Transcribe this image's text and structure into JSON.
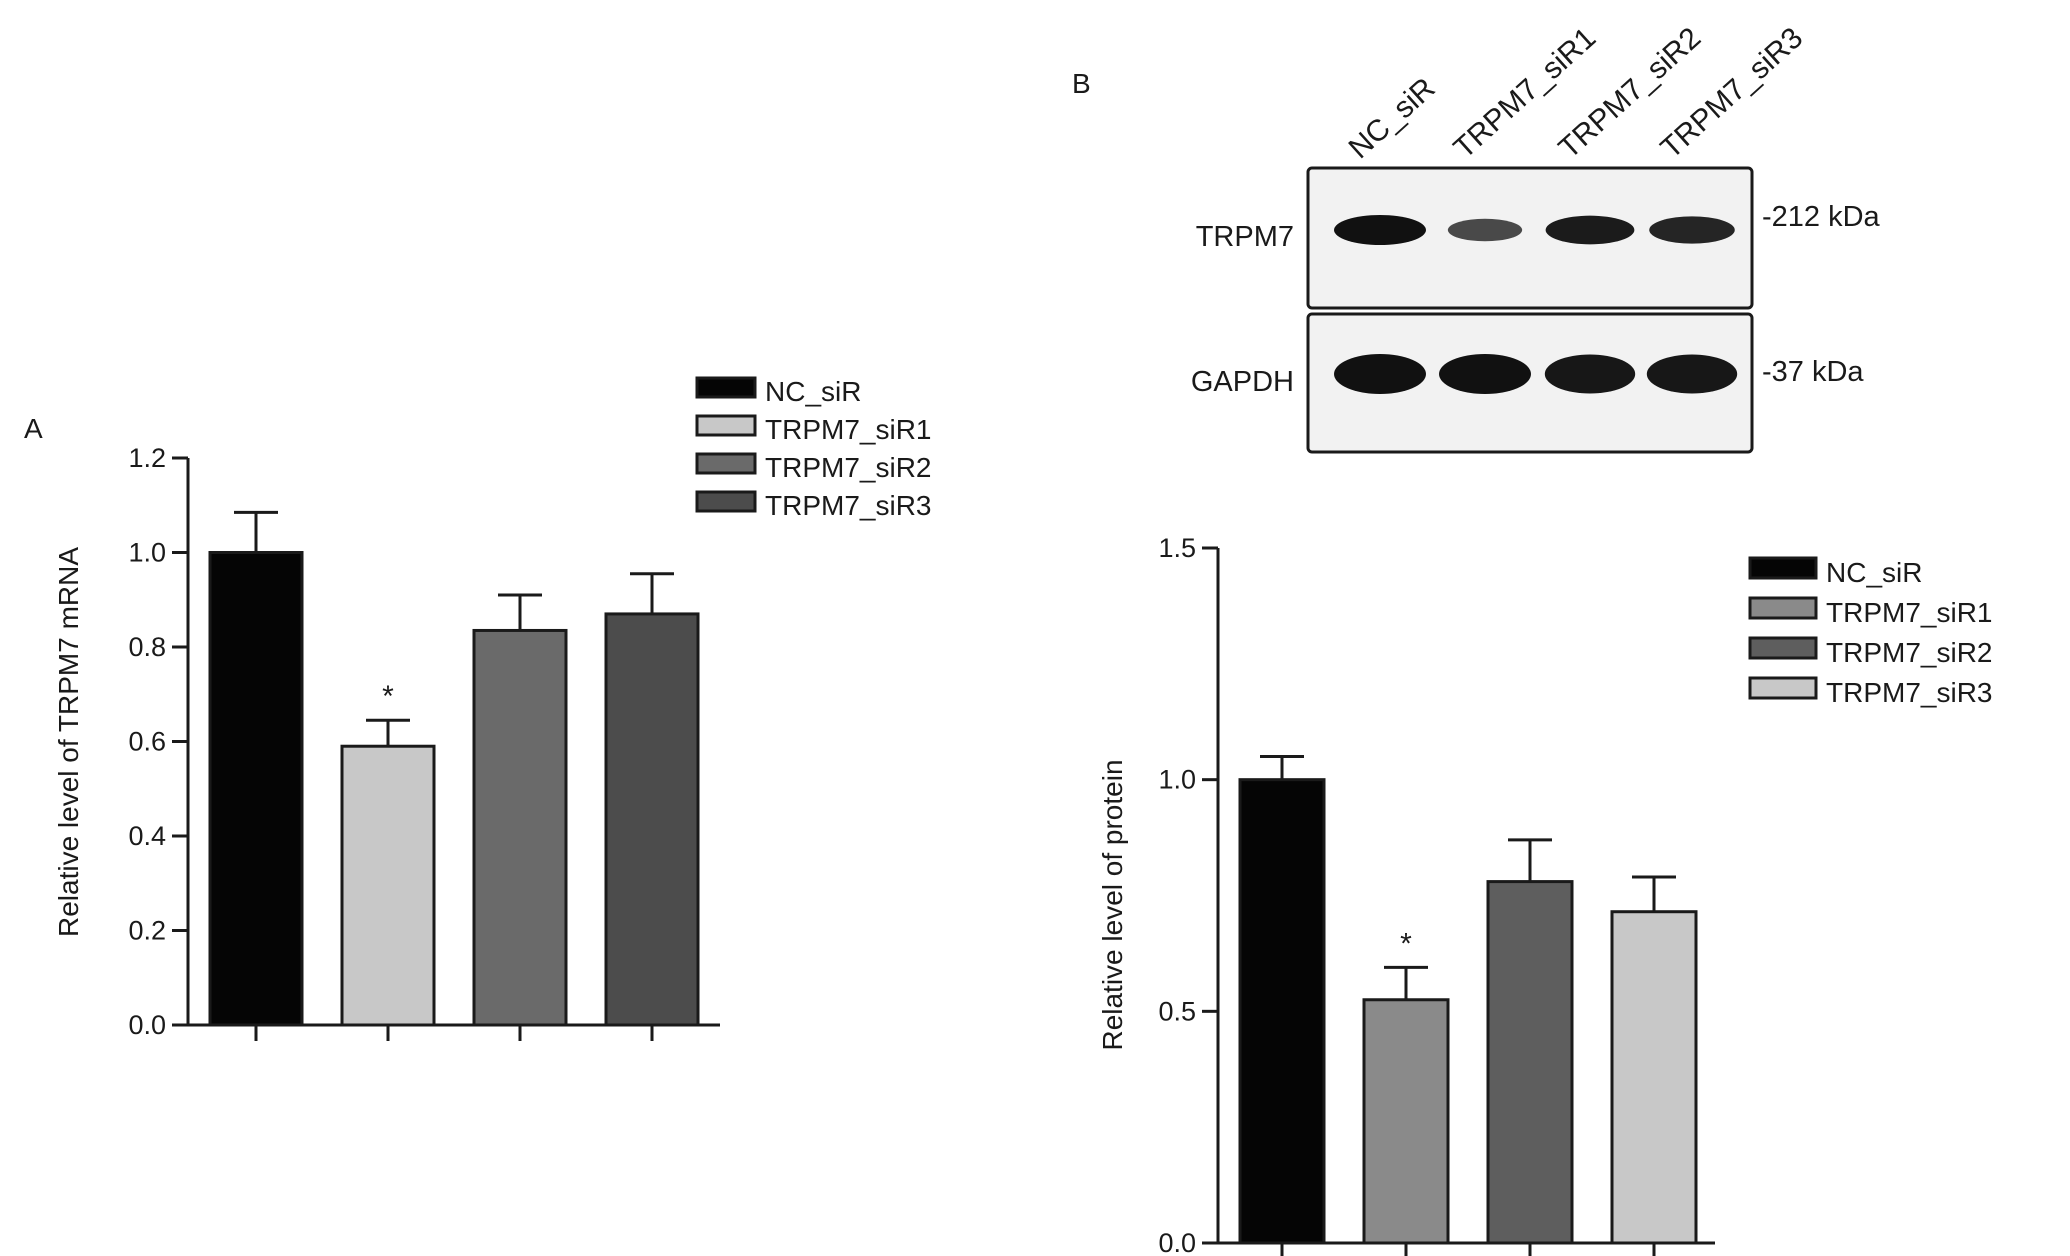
{
  "panels": {
    "a_label": "A",
    "b_label": "B"
  },
  "colors": {
    "axis": "#1a1a1a",
    "blot_bg": "#f2f2f2",
    "band": "#111111"
  },
  "chart_data": [
    {
      "type": "bar",
      "panel": "A",
      "categories": [
        "NC_siR",
        "TRPM7_siR1",
        "TRPM7_siR2",
        "TRPM7_siR3"
      ],
      "values": [
        1.0,
        0.59,
        0.835,
        0.87
      ],
      "errors": [
        0.085,
        0.055,
        0.075,
        0.085
      ],
      "significance": [
        "",
        "*",
        "",
        ""
      ],
      "colors": [
        "#050505",
        "#c8c8c8",
        "#6a6a6a",
        "#4c4c4c"
      ],
      "ylabel": "Relative level of TRPM7 mRNA",
      "xlabel": "",
      "ylim": [
        0,
        1.2
      ],
      "yticks": [
        0.0,
        0.2,
        0.4,
        0.6,
        0.8,
        1.0,
        1.2
      ],
      "ytick_labels": [
        "0.0",
        "0.2",
        "0.4",
        "0.6",
        "0.8",
        "1.0",
        "1.2"
      ],
      "legend": [
        "NC_siR",
        "TRPM7_siR1",
        "TRPM7_siR2",
        "TRPM7_siR3"
      ],
      "legend_position": "top-right",
      "grid": false
    },
    {
      "type": "bar",
      "panel": "B",
      "categories": [
        "NC_siR",
        "TRPM7_siR1",
        "TRPM7_siR2",
        "TRPM7_siR3"
      ],
      "values": [
        1.0,
        0.525,
        0.78,
        0.715
      ],
      "errors": [
        0.05,
        0.07,
        0.09,
        0.075
      ],
      "significance": [
        "",
        "*",
        "",
        ""
      ],
      "colors": [
        "#050505",
        "#8a8a8a",
        "#5e5e5e",
        "#c8c8c8"
      ],
      "ylabel": "Relative level of protein",
      "xlabel": "",
      "ylim": [
        0,
        1.5
      ],
      "yticks": [
        0.0,
        0.5,
        1.0,
        1.5
      ],
      "ytick_labels": [
        "0.0",
        "0.5",
        "1.0",
        "1.5"
      ],
      "legend": [
        "NC_siR",
        "TRPM7_siR1",
        "TRPM7_siR2",
        "TRPM7_siR3"
      ],
      "legend_position": "top-right",
      "grid": false
    }
  ],
  "blot": {
    "lanes": [
      "NC_siR",
      "TRPM7_siR1",
      "TRPM7_siR2",
      "TRPM7_siR3"
    ],
    "rows": [
      {
        "label": "TRPM7",
        "marker": "-212 kDa",
        "intensity": [
          1.0,
          0.45,
          0.9,
          0.8
        ]
      },
      {
        "label": "GAPDH",
        "marker": "-37 kDa",
        "intensity": [
          1.0,
          1.0,
          0.95,
          0.95
        ]
      }
    ]
  }
}
